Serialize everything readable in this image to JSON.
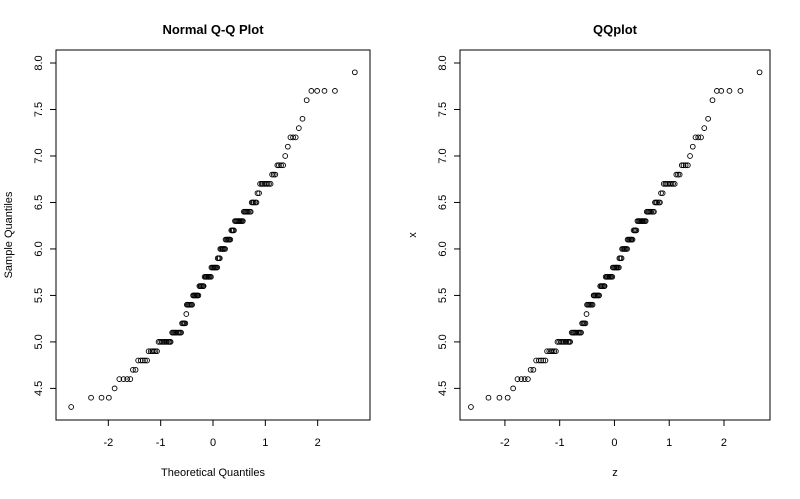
{
  "chart_data": [
    {
      "type": "scatter",
      "title": "Normal Q-Q Plot",
      "xlabel": "Theoretical Quantiles",
      "ylabel": "Sample Quantiles",
      "xlim": [
        -3.0,
        3.0
      ],
      "ylim": [
        4.16,
        8.14
      ],
      "xticks": [
        -2,
        -1,
        0,
        1,
        2
      ],
      "yticks": [
        4.5,
        {
          "value": 5,
          "label": "5.0"
        },
        5.5,
        {
          "value": 6,
          "label": "6.0"
        },
        6.5,
        {
          "value": 7,
          "label": "7.0"
        },
        7.5,
        {
          "value": 8,
          "label": "8.0"
        }
      ],
      "x": [
        -2.71,
        -2.33,
        -2.13,
        -1.99,
        -1.88,
        -1.79,
        -1.71,
        -1.64,
        -1.58,
        -1.53,
        -1.48,
        -1.43,
        -1.38,
        -1.34,
        -1.3,
        -1.26,
        -1.23,
        -1.19,
        -1.16,
        -1.13,
        -1.1,
        -1.07,
        -1.04,
        -1.01,
        -0.98,
        -0.95,
        -0.93,
        -0.9,
        -0.88,
        -0.85,
        -0.83,
        -0.81,
        -0.78,
        -0.76,
        -0.74,
        -0.72,
        -0.7,
        -0.67,
        -0.65,
        -0.63,
        -0.61,
        -0.59,
        -0.57,
        -0.55,
        -0.53,
        -0.51,
        -0.5,
        -0.48,
        -0.46,
        -0.44,
        -0.42,
        -0.4,
        -0.38,
        -0.37,
        -0.35,
        -0.33,
        -0.31,
        -0.3,
        -0.28,
        -0.26,
        -0.24,
        -0.23,
        -0.21,
        -0.19,
        -0.18,
        -0.16,
        -0.14,
        -0.13,
        -0.11,
        -0.09,
        -0.08,
        -0.06,
        -0.04,
        -0.03,
        -0.01,
        0.01,
        0.03,
        0.04,
        0.06,
        0.08,
        0.09,
        0.11,
        0.13,
        0.14,
        0.16,
        0.18,
        0.19,
        0.21,
        0.23,
        0.24,
        0.26,
        0.28,
        0.3,
        0.31,
        0.33,
        0.35,
        0.37,
        0.38,
        0.4,
        0.42,
        0.44,
        0.46,
        0.48,
        0.5,
        0.51,
        0.53,
        0.55,
        0.57,
        0.59,
        0.61,
        0.63,
        0.65,
        0.67,
        0.7,
        0.72,
        0.74,
        0.76,
        0.78,
        0.81,
        0.83,
        0.85,
        0.88,
        0.9,
        0.93,
        0.95,
        0.98,
        1.01,
        1.04,
        1.07,
        1.1,
        1.13,
        1.16,
        1.19,
        1.23,
        1.26,
        1.3,
        1.34,
        1.38,
        1.43,
        1.48,
        1.53,
        1.58,
        1.64,
        1.71,
        1.79,
        1.88,
        1.99,
        2.13,
        2.33,
        2.71
      ],
      "values": [
        4.3,
        4.4,
        4.4,
        4.4,
        4.5,
        4.6,
        4.6,
        4.6,
        4.6,
        4.7,
        4.7,
        4.8,
        4.8,
        4.8,
        4.8,
        4.8,
        4.9,
        4.9,
        4.9,
        4.9,
        4.9,
        4.9,
        5.0,
        5.0,
        5.0,
        5.0,
        5.0,
        5.0,
        5.0,
        5.0,
        5.0,
        5.0,
        5.1,
        5.1,
        5.1,
        5.1,
        5.1,
        5.1,
        5.1,
        5.1,
        5.1,
        5.2,
        5.2,
        5.2,
        5.2,
        5.3,
        5.4,
        5.4,
        5.4,
        5.4,
        5.4,
        5.4,
        5.5,
        5.5,
        5.5,
        5.5,
        5.5,
        5.5,
        5.5,
        5.6,
        5.6,
        5.6,
        5.6,
        5.6,
        5.6,
        5.7,
        5.7,
        5.7,
        5.7,
        5.7,
        5.7,
        5.7,
        5.7,
        5.8,
        5.8,
        5.8,
        5.8,
        5.8,
        5.8,
        5.8,
        5.9,
        5.9,
        5.9,
        6.0,
        6.0,
        6.0,
        6.0,
        6.0,
        6.0,
        6.1,
        6.1,
        6.1,
        6.1,
        6.1,
        6.1,
        6.2,
        6.2,
        6.2,
        6.2,
        6.3,
        6.3,
        6.3,
        6.3,
        6.3,
        6.3,
        6.3,
        6.3,
        6.3,
        6.4,
        6.4,
        6.4,
        6.4,
        6.4,
        6.4,
        6.4,
        6.5,
        6.5,
        6.5,
        6.5,
        6.5,
        6.6,
        6.6,
        6.7,
        6.7,
        6.7,
        6.7,
        6.7,
        6.7,
        6.7,
        6.7,
        6.8,
        6.8,
        6.8,
        6.9,
        6.9,
        6.9,
        6.9,
        7.0,
        7.1,
        7.2,
        7.2,
        7.2,
        7.3,
        7.4,
        7.6,
        7.7,
        7.7,
        7.7,
        7.7,
        7.9
      ]
    },
    {
      "type": "scatter",
      "title": "QQplot",
      "xlabel": "z",
      "ylabel": "x",
      "xlim": [
        -2.82,
        2.84
      ],
      "ylim": [
        4.16,
        8.14
      ],
      "xticks": [
        -2,
        -1,
        0,
        1,
        2
      ],
      "yticks": [
        4.5,
        {
          "value": 5,
          "label": "5.0"
        },
        5.5,
        {
          "value": 6,
          "label": "6.0"
        },
        6.5,
        {
          "value": 7,
          "label": "7.0"
        },
        7.5,
        {
          "value": 8,
          "label": "8.0"
        }
      ],
      "x": [
        -2.62,
        -2.3,
        -2.1,
        -1.95,
        -1.85,
        -1.77,
        -1.7,
        -1.64,
        -1.58,
        -1.53,
        -1.48,
        -1.43,
        -1.38,
        -1.34,
        -1.3,
        -1.26,
        -1.23,
        -1.19,
        -1.16,
        -1.13,
        -1.1,
        -1.07,
        -1.04,
        -1.01,
        -0.98,
        -0.95,
        -0.93,
        -0.9,
        -0.88,
        -0.85,
        -0.83,
        -0.81,
        -0.78,
        -0.76,
        -0.74,
        -0.72,
        -0.7,
        -0.67,
        -0.65,
        -0.63,
        -0.61,
        -0.59,
        -0.57,
        -0.55,
        -0.53,
        -0.51,
        -0.5,
        -0.48,
        -0.46,
        -0.44,
        -0.42,
        -0.4,
        -0.38,
        -0.37,
        -0.35,
        -0.33,
        -0.31,
        -0.3,
        -0.28,
        -0.26,
        -0.24,
        -0.23,
        -0.21,
        -0.19,
        -0.18,
        -0.16,
        -0.14,
        -0.13,
        -0.11,
        -0.09,
        -0.08,
        -0.06,
        -0.04,
        -0.03,
        -0.01,
        0.01,
        0.03,
        0.04,
        0.06,
        0.08,
        0.09,
        0.11,
        0.13,
        0.14,
        0.16,
        0.18,
        0.19,
        0.21,
        0.23,
        0.24,
        0.26,
        0.28,
        0.3,
        0.31,
        0.33,
        0.35,
        0.37,
        0.38,
        0.4,
        0.42,
        0.44,
        0.46,
        0.48,
        0.5,
        0.51,
        0.53,
        0.55,
        0.57,
        0.59,
        0.61,
        0.63,
        0.65,
        0.67,
        0.7,
        0.72,
        0.74,
        0.76,
        0.78,
        0.81,
        0.83,
        0.85,
        0.88,
        0.9,
        0.93,
        0.95,
        0.98,
        1.01,
        1.04,
        1.07,
        1.1,
        1.13,
        1.16,
        1.19,
        1.23,
        1.26,
        1.3,
        1.34,
        1.38,
        1.43,
        1.48,
        1.53,
        1.58,
        1.64,
        1.71,
        1.79,
        1.87,
        1.95,
        2.1,
        2.3,
        2.65
      ],
      "values": [
        4.3,
        4.4,
        4.4,
        4.4,
        4.5,
        4.6,
        4.6,
        4.6,
        4.6,
        4.7,
        4.7,
        4.8,
        4.8,
        4.8,
        4.8,
        4.8,
        4.9,
        4.9,
        4.9,
        4.9,
        4.9,
        4.9,
        5.0,
        5.0,
        5.0,
        5.0,
        5.0,
        5.0,
        5.0,
        5.0,
        5.0,
        5.0,
        5.1,
        5.1,
        5.1,
        5.1,
        5.1,
        5.1,
        5.1,
        5.1,
        5.1,
        5.2,
        5.2,
        5.2,
        5.2,
        5.3,
        5.4,
        5.4,
        5.4,
        5.4,
        5.4,
        5.4,
        5.5,
        5.5,
        5.5,
        5.5,
        5.5,
        5.5,
        5.5,
        5.6,
        5.6,
        5.6,
        5.6,
        5.6,
        5.6,
        5.7,
        5.7,
        5.7,
        5.7,
        5.7,
        5.7,
        5.7,
        5.7,
        5.8,
        5.8,
        5.8,
        5.8,
        5.8,
        5.8,
        5.8,
        5.9,
        5.9,
        5.9,
        6.0,
        6.0,
        6.0,
        6.0,
        6.0,
        6.0,
        6.1,
        6.1,
        6.1,
        6.1,
        6.1,
        6.1,
        6.2,
        6.2,
        6.2,
        6.2,
        6.3,
        6.3,
        6.3,
        6.3,
        6.3,
        6.3,
        6.3,
        6.3,
        6.3,
        6.4,
        6.4,
        6.4,
        6.4,
        6.4,
        6.4,
        6.4,
        6.5,
        6.5,
        6.5,
        6.5,
        6.5,
        6.6,
        6.6,
        6.7,
        6.7,
        6.7,
        6.7,
        6.7,
        6.7,
        6.7,
        6.7,
        6.8,
        6.8,
        6.8,
        6.9,
        6.9,
        6.9,
        6.9,
        7.0,
        7.1,
        7.2,
        7.2,
        7.2,
        7.3,
        7.4,
        7.6,
        7.7,
        7.7,
        7.7,
        7.7,
        7.9
      ]
    }
  ]
}
